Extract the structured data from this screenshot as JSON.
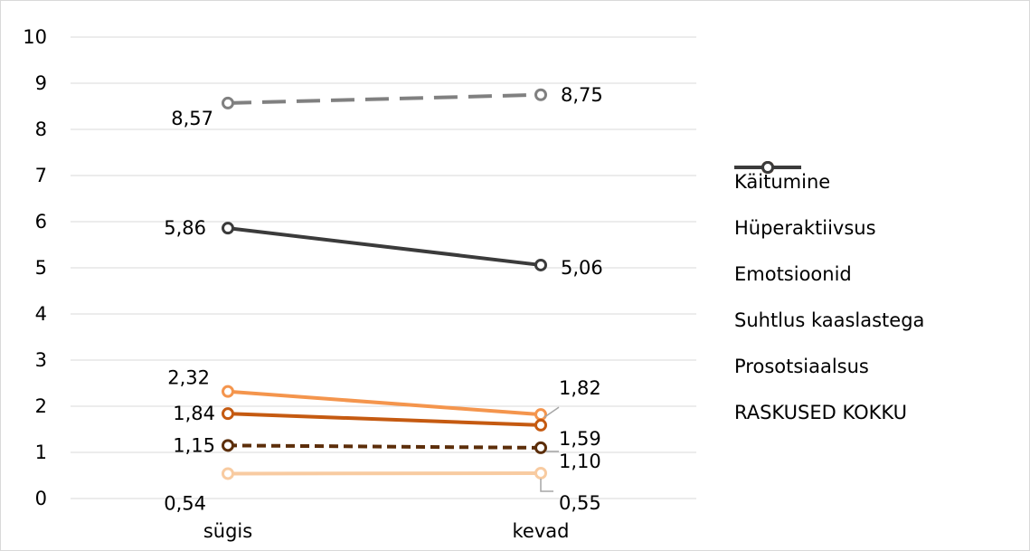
{
  "chart_data": {
    "type": "line",
    "categories": [
      "sügis",
      "kevad"
    ],
    "ylim": [
      0,
      10
    ],
    "yticks": [
      "0",
      "1",
      "2",
      "3",
      "4",
      "5",
      "6",
      "7",
      "8",
      "9",
      "10"
    ],
    "grid": true,
    "legend_position": "right",
    "series": [
      {
        "name": "Käitumine",
        "values": [
          0.54,
          0.55
        ],
        "labels": [
          "0,54",
          "0,55"
        ],
        "color": "#f8cba1",
        "dash": "solid"
      },
      {
        "name": "Hüperaktiivsus",
        "values": [
          2.32,
          1.82
        ],
        "labels": [
          "2,32",
          "1,82"
        ],
        "color": "#f4954d",
        "dash": "solid"
      },
      {
        "name": "Emotsioonid",
        "values": [
          1.84,
          1.59
        ],
        "labels": [
          "1,84",
          "1,59"
        ],
        "color": "#c55a11",
        "dash": "solid"
      },
      {
        "name": "Suhtlus kaaslastega",
        "values": [
          1.15,
          1.1
        ],
        "labels": [
          "1,15",
          "1,10"
        ],
        "color": "#5c2e0a",
        "dash": "dashed"
      },
      {
        "name": "Prosotsiaalsus",
        "values": [
          8.57,
          8.75
        ],
        "labels": [
          "8,57",
          "8,75"
        ],
        "color": "#808080",
        "dash": "long-dash"
      },
      {
        "name": "RASKUSED KOKKU",
        "values": [
          5.86,
          5.06
        ],
        "labels": [
          "5,86",
          "5,06"
        ],
        "color": "#3b3b3b",
        "dash": "solid"
      }
    ]
  }
}
